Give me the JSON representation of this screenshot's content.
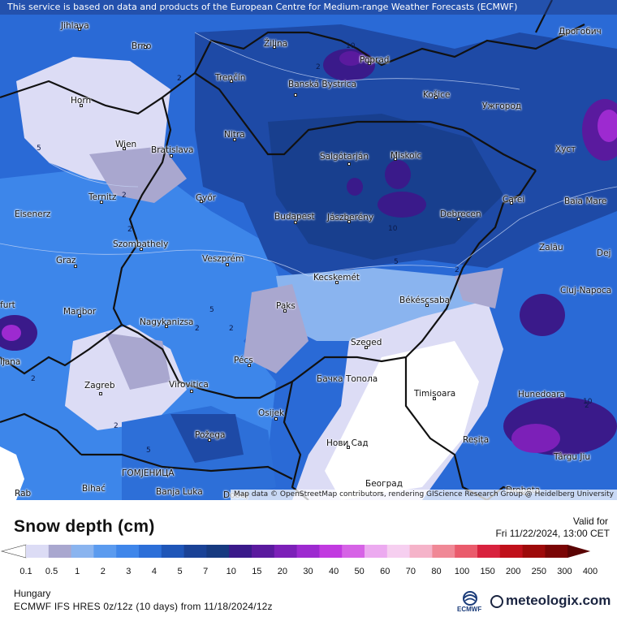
{
  "attribution": {
    "top": "This service is based on data and products of the European Centre for Medium-range Weather Forecasts (ECMWF)",
    "bottom": "Map data © OpenStreetMap contributors, rendering GIScience Research Group @ Heidelberg University"
  },
  "cities": [
    "Jihlava",
    "Brno",
    "Žilina",
    "Poprad",
    "Дрогобич",
    "Trenčín",
    "Banská Bystrica",
    "Košice",
    "Ужгород",
    "Horn",
    "Wien",
    "Bratislava",
    "Nitra",
    "Salgótarján",
    "Miskolc",
    "Хуст",
    "Ternitz",
    "Győr",
    "Carei",
    "Baia Mare",
    "Eisenerz",
    "Budapest",
    "Jászberény",
    "Debrecen",
    "Szombathely",
    "Graz",
    "Veszprém",
    "Zalău",
    "Dej",
    "Kecskemét",
    "Cluj-Napoca",
    "Maribor",
    "Paks",
    "Békéscsaba",
    "Nagykanizsa",
    "Szeged",
    "Pécs",
    "Zagreb",
    "Virovitica",
    "Бачка Топола",
    "Timișoara",
    "Hunedoara",
    "Osijek",
    "Požega",
    "Reșița",
    "Нови Сад",
    "Târgu Jiu",
    "ГОМЈЕНИЦА",
    "Bihać",
    "Banja Luka",
    "Doboj",
    "Београд",
    "Drobeta",
    "ljana",
    "furt",
    "Rab"
  ],
  "contour_labels": [
    "10",
    "2",
    "2",
    "5",
    "2",
    "2",
    "10",
    "5",
    "2",
    "5",
    "2",
    "2",
    "5",
    "2",
    "2",
    "10",
    "2"
  ],
  "legend": {
    "title": "Snow depth (cm)",
    "valid_label": "Valid for",
    "valid_date": "Fri 11/22/2024, 13:00 CET",
    "ticks": [
      "0.1",
      "0.5",
      "1",
      "2",
      "3",
      "4",
      "5",
      "7",
      "10",
      "15",
      "20",
      "30",
      "40",
      "50",
      "60",
      "70",
      "80",
      "100",
      "150",
      "200",
      "250",
      "300",
      "400"
    ],
    "colors": [
      "#ffffff",
      "#dcdcf5",
      "#a9a7cf",
      "#8ab4ef",
      "#5b9bef",
      "#3f86ea",
      "#2d6fd8",
      "#1f56b8",
      "#1a4296",
      "#173a80",
      "#3a1a8a",
      "#5a1a9e",
      "#7c20b8",
      "#9d2ad0",
      "#c13ae0",
      "#d663e6",
      "#ecaaf0",
      "#f6cff0",
      "#f5b3c9",
      "#f08896",
      "#ea5b6c",
      "#d8223e",
      "#c0101a",
      "#9d0a0a",
      "#7a0505",
      "#5a0303"
    ]
  },
  "region": "Hungary",
  "model_info": "ECMWF IFS HRES 0z/12z (10 days) from  11/18/2024/12z",
  "logos": {
    "ecmwf": "ECMWF",
    "meteologix": "meteologix.com"
  }
}
